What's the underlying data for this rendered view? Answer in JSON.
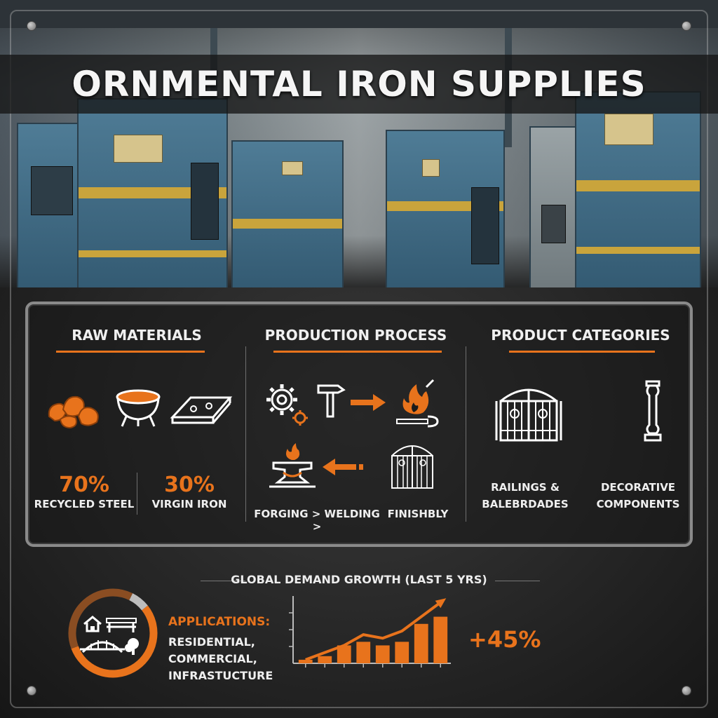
{
  "title": "ORNMENTAL IRON SUPPLIES",
  "colors": {
    "accent": "#e8731c",
    "text": "#efefef",
    "machine_blue": "#4f7c96"
  },
  "raw_materials": {
    "heading": "RAW MATERIALS",
    "icons": [
      "ore-pile-icon",
      "crucible-icon",
      "steel-ingot-icon"
    ],
    "recycled": {
      "percent": "70%",
      "label": "RECYCLED STEEL"
    },
    "virgin": {
      "percent": "30%",
      "label": "VIRGIN IRON"
    }
  },
  "production": {
    "heading": "PRODUCTION PROCESS",
    "icons": [
      "gears-icon",
      "hammer-icon",
      "arrow-right-icon",
      "fire-wrench-icon",
      "anvil-fire-icon",
      "arrow-left-icon",
      "gate-icon"
    ],
    "steps_label": "FORGING > WELDING >",
    "finish_label": "FINISHBLY"
  },
  "products": {
    "heading": "PRODUCT CATEGORIES",
    "icons": [
      "ornamental-gate-icon",
      "baluster-icon"
    ],
    "cat1_line1": "RAILINGS &",
    "cat1_line2": "BALEBRDADES",
    "cat2_line1": "DECORATIVE",
    "cat2_line2": "COMPONENTS"
  },
  "applications": {
    "title": "APPLICATIONS:",
    "lines": [
      "RESIDENTIAL,",
      "COMMERCIAL,",
      "INFRASTUCTURE"
    ],
    "icons": [
      "house-icon",
      "bench-icon",
      "bridge-icon",
      "tree-icon"
    ]
  },
  "growth_value": "+45%",
  "chart_data": [
    {
      "type": "pie",
      "description_free": true,
      "values": [
        55,
        38,
        7
      ],
      "colors": [
        "#e8731c",
        "#8a4d22",
        "#bdbdbd"
      ]
    },
    {
      "type": "bar",
      "title": "GLOBAL DEMAND GROWTH (LAST 5 YRS)",
      "values": [
        1,
        2,
        5,
        6,
        5,
        6,
        11,
        13
      ],
      "trend_line": [
        1,
        3,
        5,
        8,
        7,
        9,
        13,
        17
      ],
      "ylim": [
        0,
        18
      ],
      "grid": false,
      "bar_color": "#e8731c",
      "line_color": "#e8731c"
    }
  ]
}
